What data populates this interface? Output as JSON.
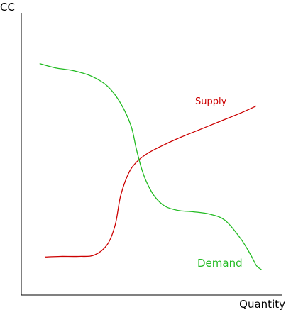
{
  "chart_data": {
    "type": "line",
    "xlabel": "Quantity",
    "ylabel": "CC",
    "xlim": [
      0,
      100
    ],
    "ylim": [
      0,
      100
    ],
    "grid": false,
    "legend": "none",
    "series": [
      {
        "name": "Supply",
        "color": "#cc0000",
        "x": [
          9,
          15,
          22,
          28,
          33,
          36,
          38,
          41,
          44,
          48,
          53,
          60,
          68,
          76,
          84,
          90
        ],
        "y": [
          13.5,
          13.7,
          13.7,
          14.2,
          18,
          25,
          35,
          43,
          47,
          50,
          52.5,
          55.5,
          58.5,
          61.5,
          64.5,
          67
        ]
      },
      {
        "name": "Demand",
        "color": "#22bb22",
        "x": [
          7,
          13,
          20,
          27,
          33,
          38,
          42,
          44,
          46,
          48,
          51,
          55,
          60,
          66,
          72,
          78,
          84,
          88,
          90,
          92
        ],
        "y": [
          82,
          80.5,
          79.5,
          77.5,
          74,
          68,
          60,
          52,
          45,
          40,
          35,
          31.5,
          30,
          29.5,
          28.7,
          26.5,
          20,
          14,
          10.5,
          9
        ]
      }
    ]
  }
}
